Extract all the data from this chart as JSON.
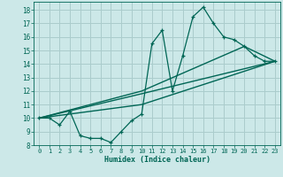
{
  "xlabel": "Humidex (Indice chaleur)",
  "bg_color": "#cce8e8",
  "grid_color": "#aacccc",
  "line_color": "#006655",
  "xlim": [
    -0.5,
    23.5
  ],
  "ylim": [
    8,
    18.6
  ],
  "xticks": [
    0,
    1,
    2,
    3,
    4,
    5,
    6,
    7,
    8,
    9,
    10,
    11,
    12,
    13,
    14,
    15,
    16,
    17,
    18,
    19,
    20,
    21,
    22,
    23
  ],
  "yticks": [
    8,
    9,
    10,
    11,
    12,
    13,
    14,
    15,
    16,
    17,
    18
  ],
  "jagged_x": [
    0,
    1,
    2,
    3,
    4,
    5,
    6,
    7,
    8,
    9,
    10,
    11,
    12,
    13,
    14,
    15,
    16,
    17,
    18,
    19,
    20,
    21,
    22,
    23
  ],
  "jagged_y": [
    10,
    10,
    9.5,
    10.5,
    8.7,
    8.5,
    8.5,
    8.2,
    9.0,
    9.8,
    10.3,
    15.5,
    16.5,
    12.0,
    14.6,
    17.5,
    18.2,
    17.0,
    16.0,
    15.8,
    15.3,
    14.6,
    14.2,
    14.2
  ],
  "line1_x": [
    0,
    10,
    23
  ],
  "line1_y": [
    10,
    11.0,
    14.2
  ],
  "line2_x": [
    0,
    10,
    23
  ],
  "line2_y": [
    10,
    11.8,
    14.2
  ],
  "line3_x": [
    0,
    10,
    20,
    23
  ],
  "line3_y": [
    10,
    12.0,
    15.3,
    14.2
  ]
}
